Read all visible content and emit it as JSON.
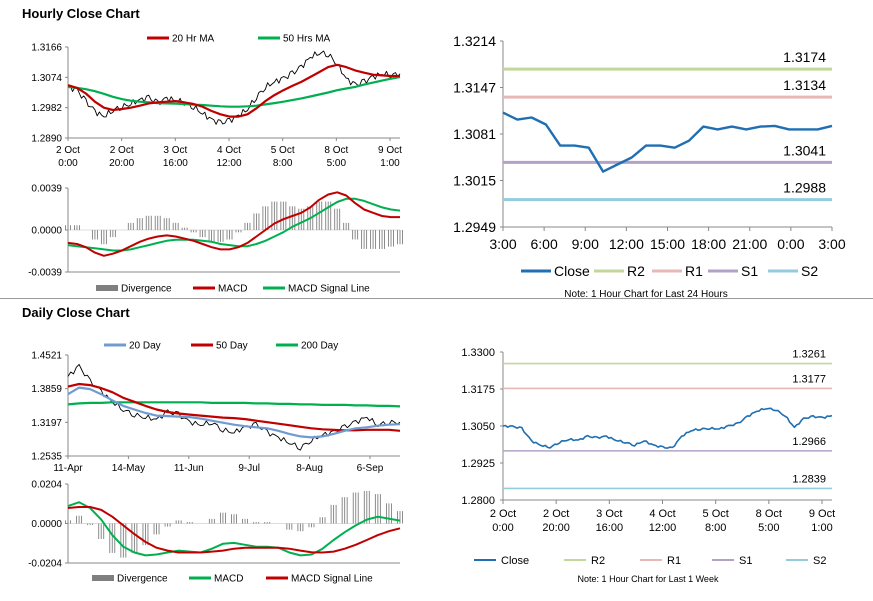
{
  "hourly": {
    "title": "Hourly Close Chart",
    "main": {
      "type": "line",
      "legend": [
        "20 Hr MA",
        "50 Hrs MA"
      ],
      "y_ticks": [
        "1.3166",
        "1.3074",
        "1.2982",
        "1.2890"
      ],
      "x_ticks": [
        [
          "2 Oct",
          "0:00"
        ],
        [
          "2 Oct",
          "20:00"
        ],
        [
          "3 Oct",
          "16:00"
        ],
        [
          "4 Oct",
          "12:00"
        ],
        [
          "5 Oct",
          "8:00"
        ],
        [
          "8 Oct",
          "5:00"
        ],
        [
          "9 Oct",
          "1:00"
        ]
      ],
      "ylim": [
        1.289,
        1.3166
      ],
      "price": [
        1.3045,
        1.3035,
        1.3,
        1.297,
        1.2955,
        1.2975,
        1.2985,
        1.2995,
        1.3005,
        1.3012,
        1.2995,
        1.301,
        1.3005,
        1.2998,
        1.2985,
        1.2965,
        1.2945,
        1.2935,
        1.2942,
        1.2958,
        1.2978,
        1.3015,
        1.3045,
        1.306,
        1.307,
        1.3085,
        1.3105,
        1.3135,
        1.315,
        1.3145,
        1.3115,
        1.307,
        1.305,
        1.306,
        1.3075,
        1.3085,
        1.3082,
        1.3085
      ],
      "ma20": [
        1.305,
        1.3042,
        1.3025,
        1.3,
        1.2982,
        1.2975,
        1.2978,
        1.2982,
        1.2988,
        1.2995,
        1.2998,
        1.3,
        1.3002,
        1.2998,
        1.2993,
        1.2985,
        1.2972,
        1.2962,
        1.2955,
        1.2955,
        1.2962,
        1.298,
        1.3002,
        1.302,
        1.3035,
        1.3048,
        1.306,
        1.3075,
        1.309,
        1.3105,
        1.3112,
        1.3105,
        1.3095,
        1.3088,
        1.3082,
        1.308,
        1.3078,
        1.3078
      ],
      "ma50": [
        1.3045,
        1.3042,
        1.3038,
        1.3032,
        1.3024,
        1.3015,
        1.3008,
        1.3003,
        1.3,
        1.2998,
        1.2996,
        1.2995,
        1.2994,
        1.2993,
        1.2991,
        1.299,
        1.2988,
        1.2986,
        1.2985,
        1.2985,
        1.2986,
        1.2988,
        1.2992,
        1.2996,
        1.3,
        1.3005,
        1.301,
        1.3016,
        1.3022,
        1.3028,
        1.3035,
        1.304,
        1.3045,
        1.3052,
        1.3058,
        1.3064,
        1.307,
        1.3075
      ]
    },
    "macd": {
      "type": "line",
      "legend": [
        "Divergence",
        "MACD",
        "MACD Signal Line"
      ],
      "y_ticks": [
        "0.0039",
        "0.0000",
        "-0.0039"
      ],
      "ylim": [
        -0.0039,
        0.0039
      ],
      "macd": [
        -0.0012,
        -0.0013,
        -0.0016,
        -0.0021,
        -0.0024,
        -0.0022,
        -0.0019,
        -0.0015,
        -0.0011,
        -0.0008,
        -0.0006,
        -0.0005,
        -0.0006,
        -0.0008,
        -0.001,
        -0.0013,
        -0.0016,
        -0.0018,
        -0.0018,
        -0.0016,
        -0.0012,
        -0.0006,
        0.0,
        0.0006,
        0.001,
        0.0013,
        0.0016,
        0.0021,
        0.0028,
        0.0033,
        0.0035,
        0.0032,
        0.0025,
        0.0019,
        0.0016,
        0.0013,
        0.0012,
        0.0012
      ],
      "signal": [
        -0.0014,
        -0.0015,
        -0.0016,
        -0.0017,
        -0.0018,
        -0.0019,
        -0.0019,
        -0.0018,
        -0.0016,
        -0.0014,
        -0.0012,
        -0.001,
        -0.0009,
        -0.0009,
        -0.0009,
        -0.001,
        -0.0011,
        -0.0013,
        -0.0014,
        -0.0015,
        -0.0015,
        -0.0013,
        -0.001,
        -0.0006,
        -0.0002,
        0.0003,
        0.0007,
        0.0011,
        0.0016,
        0.0021,
        0.0026,
        0.0029,
        0.0029,
        0.0027,
        0.0024,
        0.0021,
        0.0019,
        0.0018
      ]
    },
    "pivot": {
      "type": "line",
      "y_ticks": [
        "1.3214",
        "1.3147",
        "1.3081",
        "1.3015",
        "1.2949"
      ],
      "ylim": [
        1.2949,
        1.3214
      ],
      "x_ticks": [
        "3:00",
        "6:00",
        "9:00",
        "12:00",
        "15:00",
        "18:00",
        "21:00",
        "0:00",
        "3:00"
      ],
      "close": [
        1.3112,
        1.3102,
        1.3105,
        1.3095,
        1.3065,
        1.3065,
        1.3062,
        1.3028,
        1.3038,
        1.3048,
        1.3065,
        1.3065,
        1.3062,
        1.3072,
        1.3092,
        1.3088,
        1.3092,
        1.3088,
        1.3092,
        1.3093,
        1.3088,
        1.3088,
        1.3088,
        1.3093
      ],
      "levels": [
        {
          "name": "R2",
          "value": 1.3174,
          "label": "1.3174",
          "color": "#c4d79b"
        },
        {
          "name": "R1",
          "value": 1.3134,
          "label": "1.3134",
          "color": "#e6b9b8"
        },
        {
          "name": "S1",
          "value": 1.3041,
          "label": "1.3041",
          "color": "#b3a2c7"
        },
        {
          "name": "S2",
          "value": 1.2988,
          "label": "1.2988",
          "color": "#93cddd"
        }
      ],
      "legend": [
        "Close",
        "R2",
        "R1",
        "S1",
        "S2"
      ],
      "note": "Note: 1 Hour Chart for Last 24 Hours"
    }
  },
  "daily": {
    "title": "Daily Close Chart",
    "main": {
      "type": "line",
      "legend": [
        "20 Day",
        "50 Day",
        "200 Day"
      ],
      "y_ticks": [
        "1.4521",
        "1.3859",
        "1.3197",
        "1.2535"
      ],
      "ylim": [
        1.2535,
        1.4521
      ],
      "x_ticks": [
        "11-Apr",
        "14-May",
        "11-Jun",
        "9-Jul",
        "8-Aug",
        "6-Sep"
      ],
      "price": [
        1.41,
        1.43,
        1.4,
        1.38,
        1.36,
        1.345,
        1.335,
        1.33,
        1.325,
        1.34,
        1.335,
        1.32,
        1.315,
        1.32,
        1.305,
        1.3,
        1.31,
        1.315,
        1.3,
        1.29,
        1.28,
        1.27,
        1.285,
        1.295,
        1.3,
        1.31,
        1.32,
        1.33,
        1.315,
        1.32,
        1.32
      ],
      "ma20": [
        1.375,
        1.388,
        1.385,
        1.375,
        1.363,
        1.352,
        1.345,
        1.338,
        1.333,
        1.332,
        1.331,
        1.33,
        1.327,
        1.323,
        1.319,
        1.315,
        1.312,
        1.31,
        1.308,
        1.303,
        1.297,
        1.292,
        1.29,
        1.292,
        1.297,
        1.303,
        1.308,
        1.31,
        1.313,
        1.315,
        1.316
      ],
      "ma50": [
        1.39,
        1.395,
        1.393,
        1.387,
        1.379,
        1.368,
        1.36,
        1.352,
        1.345,
        1.34,
        1.337,
        1.335,
        1.333,
        1.331,
        1.329,
        1.328,
        1.326,
        1.323,
        1.32,
        1.317,
        1.314,
        1.311,
        1.308,
        1.306,
        1.305,
        1.304,
        1.304,
        1.305,
        1.305,
        1.305,
        1.303
      ],
      "ma200": [
        1.355,
        1.357,
        1.358,
        1.358,
        1.359,
        1.359,
        1.359,
        1.359,
        1.359,
        1.359,
        1.359,
        1.359,
        1.359,
        1.358,
        1.358,
        1.358,
        1.358,
        1.357,
        1.357,
        1.356,
        1.356,
        1.355,
        1.355,
        1.354,
        1.354,
        1.354,
        1.353,
        1.353,
        1.352,
        1.352,
        1.351
      ]
    },
    "macd": {
      "type": "line",
      "legend": [
        "Divergence",
        "MACD",
        "MACD Signal Line"
      ],
      "y_ticks": [
        "0.0204",
        "0.0000",
        "-0.0204"
      ],
      "ylim": [
        -0.0204,
        0.0204
      ],
      "macd": [
        0.009,
        0.011,
        0.008,
        0.002,
        -0.006,
        -0.012,
        -0.015,
        -0.0165,
        -0.016,
        -0.015,
        -0.014,
        -0.0145,
        -0.015,
        -0.013,
        -0.0105,
        -0.01,
        -0.011,
        -0.012,
        -0.012,
        -0.0125,
        -0.015,
        -0.0165,
        -0.016,
        -0.013,
        -0.0085,
        -0.0045,
        -0.001,
        0.002,
        0.0035,
        0.0025,
        0.0015
      ],
      "signal": [
        0.008,
        0.0085,
        0.0085,
        0.007,
        0.0035,
        -0.001,
        -0.0055,
        -0.0095,
        -0.0125,
        -0.014,
        -0.015,
        -0.015,
        -0.015,
        -0.0145,
        -0.014,
        -0.013,
        -0.0125,
        -0.0125,
        -0.0125,
        -0.0125,
        -0.013,
        -0.014,
        -0.0148,
        -0.015,
        -0.0145,
        -0.013,
        -0.011,
        -0.0085,
        -0.006,
        -0.004,
        -0.0025
      ]
    },
    "pivot": {
      "type": "line",
      "y_ticks": [
        "1.3300",
        "1.3175",
        "1.3050",
        "1.2925",
        "1.2800"
      ],
      "ylim": [
        1.28,
        1.33
      ],
      "x_ticks": [
        [
          "2 Oct",
          "0:00"
        ],
        [
          "2 Oct",
          "20:00"
        ],
        [
          "3 Oct",
          "16:00"
        ],
        [
          "4 Oct",
          "12:00"
        ],
        [
          "5 Oct",
          "8:00"
        ],
        [
          "8 Oct",
          "5:00"
        ],
        [
          "9 Oct",
          "1:00"
        ]
      ],
      "close": [
        1.305,
        1.3048,
        1.3042,
        1.3,
        1.2985,
        1.2978,
        1.2995,
        1.3005,
        1.3002,
        1.3015,
        1.301,
        1.3015,
        1.3002,
        1.2995,
        1.2985,
        1.3,
        1.2985,
        1.2978,
        1.2975,
        1.3015,
        1.3035,
        1.304,
        1.3042,
        1.304,
        1.305,
        1.3058,
        1.3082,
        1.31,
        1.311,
        1.3105,
        1.3085,
        1.3045,
        1.3075,
        1.3082,
        1.3078,
        1.3085
      ],
      "levels": [
        {
          "name": "R2",
          "value": 1.3261,
          "label": "1.3261",
          "color": "#c4d79b"
        },
        {
          "name": "R1",
          "value": 1.3177,
          "label": "1.3177",
          "color": "#e6b9b8"
        },
        {
          "name": "S1",
          "value": 1.2966,
          "label": "1.2966",
          "color": "#b3a2c7"
        },
        {
          "name": "S2",
          "value": 1.2839,
          "label": "1.2839",
          "color": "#93cddd"
        }
      ],
      "legend": [
        "Close",
        "R2",
        "R1",
        "S1",
        "S2"
      ],
      "note": "Note: 1 Hour Chart for Last 1 Week"
    }
  },
  "colors": {
    "price": "#000000",
    "ma_red": "#c00000",
    "ma_green": "#00b050",
    "ma_blue": "#6f9bd1",
    "close": "#1f6fb2",
    "divergence": "#7f7f7f",
    "axis": "#888888"
  }
}
